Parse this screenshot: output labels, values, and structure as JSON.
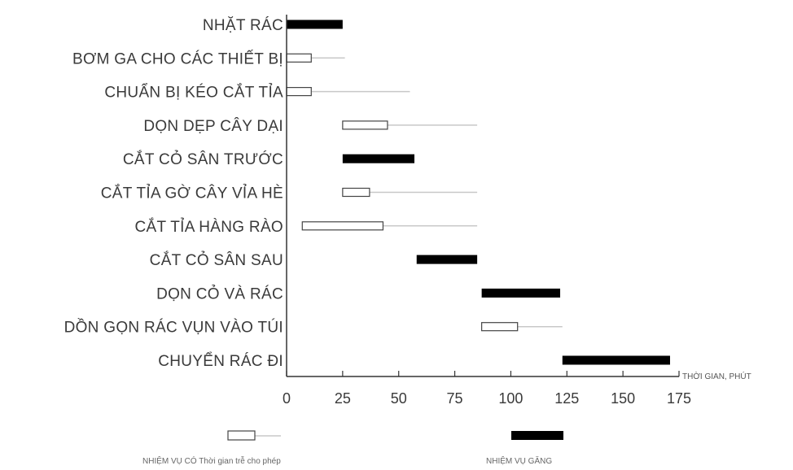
{
  "chart_data": {
    "type": "gantt",
    "xlabel": "THỜI GIAN, PHÚT",
    "xlim": [
      0,
      175
    ],
    "xticks": [
      0,
      25,
      50,
      75,
      100,
      125,
      150,
      175
    ],
    "tasks": [
      {
        "label": "NHẶT RÁC",
        "start": 0,
        "end": 25,
        "critical": true
      },
      {
        "label": "BƠM GA CHO CÁC THIẾT BỊ",
        "start": 0,
        "end": 11,
        "slack_end": 26,
        "critical": false
      },
      {
        "label": "CHUẨN BỊ KÉO CẮT TỈA",
        "start": 0,
        "end": 11,
        "slack_end": 55,
        "critical": false
      },
      {
        "label": "DỌN DẸP CÂY DẠI",
        "start": 25,
        "end": 45,
        "slack_end": 85,
        "critical": false
      },
      {
        "label": "CẮT CỎ SÂN TRƯỚC",
        "start": 25,
        "end": 57,
        "critical": true
      },
      {
        "label": "CẮT TỈA GỜ CÂY VỈA HÈ",
        "start": 25,
        "end": 37,
        "slack_end": 85,
        "critical": false
      },
      {
        "label": "CẮT TỈA HÀNG RÀO",
        "start": 7,
        "end": 43,
        "slack_end": 85,
        "critical": false
      },
      {
        "label": "CẮT CỎ SÂN SAU",
        "start": 58,
        "end": 85,
        "critical": true
      },
      {
        "label": "DỌN CỎ VÀ RÁC",
        "start": 87,
        "end": 122,
        "critical": true
      },
      {
        "label": "DỒN GỌN RÁC VỤN VÀO TÚI",
        "start": 87,
        "end": 103,
        "slack_end": 123,
        "critical": false
      },
      {
        "label": "CHUYỂN RÁC ĐI",
        "start": 123,
        "end": 171,
        "critical": true
      }
    ],
    "legend": {
      "slack_label": "NHIỆM VỤ CÓ Thời gian trễ cho phép",
      "critical_label": "NHIỆM VỤ GĂNG"
    },
    "colors": {
      "critical": "#000000",
      "slack_box": "#ffffff",
      "slack_line": "#c8c8c8",
      "axis": "#333333",
      "text": "#3a3a3a"
    }
  }
}
